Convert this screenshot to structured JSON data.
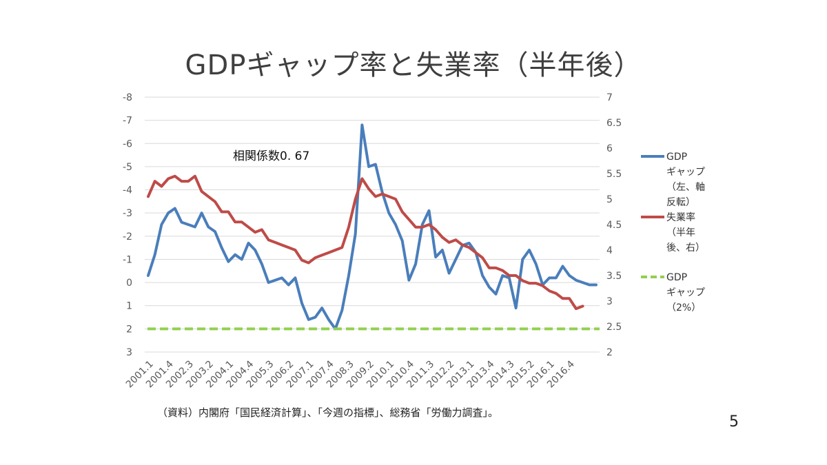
{
  "slide": {
    "title": "GDPギャップ率と失業率（半年後）",
    "source": "（資料）内閣府「国民経済計算」、「今週の指標」、総務省「労働力調査」。",
    "page_number": "5"
  },
  "chart_data": {
    "type": "line",
    "annotation": "相関係数0. 67",
    "x_tick_labels": [
      "2001.1",
      "2001.4",
      "2002.3",
      "2003.2",
      "2004.1",
      "2004.4",
      "2005.3",
      "2006.2",
      "2007.1",
      "2007.4",
      "2008.3",
      "2009.2",
      "2010.1",
      "2010.4",
      "2011.3",
      "2012.2",
      "2013.1",
      "2013.4",
      "2014.3",
      "2015.2",
      "2016.1",
      "2016.4"
    ],
    "left_axis": {
      "ticks": [
        "-8",
        "-7",
        "-6",
        "-5",
        "-4",
        "-3",
        "-2",
        "-1",
        "0",
        "1",
        "2",
        "3"
      ],
      "range": [
        -8,
        3
      ],
      "inverted": true
    },
    "right_axis": {
      "ticks": [
        "7",
        "6.5",
        "6",
        "5.5",
        "5",
        "4.5",
        "4",
        "3.5",
        "3",
        "2.5",
        "2"
      ],
      "range": [
        2,
        7
      ]
    },
    "grid": "horizontal",
    "legend_position": "right",
    "series": [
      {
        "name": "GDPギャップ（左、軸反転）",
        "legend_lines": [
          "GDP",
          "ギャップ",
          "（左、軸",
          "反転）"
        ],
        "axis": "left",
        "color": "#4a7ebb",
        "values": [
          -0.3,
          -1.2,
          -2.5,
          -3.0,
          -3.2,
          -2.6,
          -2.5,
          -2.4,
          -3.0,
          -2.4,
          -2.2,
          -1.5,
          -0.9,
          -1.2,
          -1.0,
          -1.7,
          -1.4,
          -0.8,
          0.0,
          -0.1,
          -0.2,
          0.1,
          -0.2,
          0.9,
          1.6,
          1.5,
          1.1,
          1.6,
          2.0,
          1.2,
          -0.3,
          -2.1,
          -6.8,
          -5.0,
          -5.1,
          -3.9,
          -3.0,
          -2.5,
          -1.8,
          -0.1,
          -0.8,
          -2.5,
          -3.1,
          -1.1,
          -1.4,
          -0.4,
          -1.0,
          -1.6,
          -1.7,
          -1.3,
          -0.3,
          0.2,
          0.5,
          -0.3,
          -0.2,
          1.1,
          -1.0,
          -1.4,
          -0.8,
          0.1,
          -0.2,
          -0.2,
          -0.7,
          -0.3,
          -0.1,
          0.0,
          0.1,
          0.1
        ],
        "x_index_start": 0
      },
      {
        "name": "失業率（半年後、右）",
        "legend_lines": [
          "失業率",
          "（半年",
          "後、右）"
        ],
        "axis": "right",
        "color": "#be4b48",
        "values": [
          5.05,
          5.35,
          5.25,
          5.4,
          5.45,
          5.35,
          5.35,
          5.45,
          5.15,
          5.05,
          4.95,
          4.75,
          4.75,
          4.55,
          4.55,
          4.45,
          4.35,
          4.4,
          4.2,
          4.15,
          4.1,
          4.05,
          4.0,
          3.8,
          3.75,
          3.85,
          3.9,
          3.95,
          4.0,
          4.05,
          4.45,
          5.0,
          5.4,
          5.2,
          5.05,
          5.1,
          5.05,
          5.0,
          4.75,
          4.6,
          4.45,
          4.45,
          4.5,
          4.4,
          4.25,
          4.15,
          4.2,
          4.1,
          4.05,
          3.95,
          3.85,
          3.65,
          3.65,
          3.6,
          3.5,
          3.5,
          3.4,
          3.35,
          3.35,
          3.3,
          3.2,
          3.15,
          3.05,
          3.05,
          2.85,
          2.9
        ],
        "x_index_start": 0
      },
      {
        "name": "GDPギャップ（2%）",
        "legend_lines": [
          "GDP",
          "ギャップ",
          "（2%）"
        ],
        "axis": "left",
        "color": "#92d050",
        "dashed": true,
        "values": [
          2,
          2
        ]
      }
    ]
  }
}
